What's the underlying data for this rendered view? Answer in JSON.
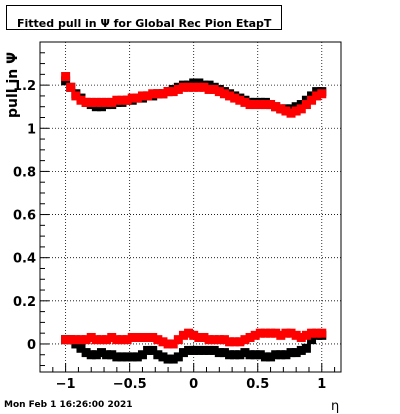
{
  "title": "Fitted pull in  Ψ  for Global Rec Pion EtapT",
  "footer": "Mon Feb  1 16:26:00 2021",
  "chart_data": {
    "type": "scatter",
    "title": "Fitted pull in  Ψ  for Global Rec Pion EtapT",
    "xlabel": "η",
    "ylabel": "pull in  Ψ",
    "xlim": [
      -1.2,
      1.15
    ],
    "ylim": [
      -0.13,
      1.4
    ],
    "grid": true,
    "x_ticks": [
      -1,
      -0.5,
      0,
      0.5,
      1
    ],
    "x_tick_labels": [
      "−1",
      "−0.5",
      "0",
      "0.5",
      "1"
    ],
    "y_ticks": [
      0,
      0.2,
      0.4,
      0.6,
      0.8,
      1,
      1.2
    ],
    "y_tick_labels": [
      "0",
      "0.2",
      "0.4",
      "0.6",
      "0.8",
      "1",
      "1.2"
    ],
    "x": [
      -1.0,
      -0.96,
      -0.92,
      -0.88,
      -0.84,
      -0.8,
      -0.76,
      -0.72,
      -0.68,
      -0.64,
      -0.6,
      -0.56,
      -0.52,
      -0.48,
      -0.44,
      -0.4,
      -0.36,
      -0.32,
      -0.28,
      -0.24,
      -0.2,
      -0.16,
      -0.12,
      -0.08,
      -0.04,
      0.0,
      0.04,
      0.08,
      0.12,
      0.16,
      0.2,
      0.24,
      0.28,
      0.32,
      0.36,
      0.4,
      0.44,
      0.48,
      0.52,
      0.56,
      0.6,
      0.64,
      0.68,
      0.72,
      0.76,
      0.8,
      0.84,
      0.88,
      0.92,
      0.96,
      1.0
    ],
    "series": [
      {
        "color": "#000000",
        "values": [
          1.22,
          1.19,
          1.16,
          1.14,
          1.12,
          1.11,
          1.1,
          1.1,
          1.11,
          1.11,
          1.12,
          1.12,
          1.13,
          1.13,
          1.14,
          1.14,
          1.15,
          1.15,
          1.16,
          1.16,
          1.17,
          1.18,
          1.19,
          1.2,
          1.2,
          1.21,
          1.21,
          1.2,
          1.2,
          1.19,
          1.18,
          1.17,
          1.16,
          1.15,
          1.14,
          1.13,
          1.12,
          1.12,
          1.12,
          1.12,
          1.11,
          1.1,
          1.09,
          1.09,
          1.09,
          1.1,
          1.11,
          1.13,
          1.15,
          1.17,
          1.17
        ]
      },
      {
        "color": "#ff0000",
        "values": [
          1.24,
          1.19,
          1.15,
          1.13,
          1.12,
          1.12,
          1.12,
          1.12,
          1.12,
          1.12,
          1.13,
          1.13,
          1.13,
          1.14,
          1.14,
          1.15,
          1.15,
          1.16,
          1.16,
          1.16,
          1.17,
          1.17,
          1.18,
          1.19,
          1.19,
          1.19,
          1.19,
          1.19,
          1.18,
          1.18,
          1.17,
          1.16,
          1.15,
          1.14,
          1.13,
          1.12,
          1.11,
          1.11,
          1.11,
          1.11,
          1.11,
          1.1,
          1.09,
          1.08,
          1.07,
          1.08,
          1.09,
          1.11,
          1.13,
          1.15,
          1.16
        ]
      },
      {
        "color": "#000000",
        "values": [
          0.02,
          0.02,
          0.0,
          -0.02,
          -0.04,
          -0.05,
          -0.05,
          -0.04,
          -0.05,
          -0.05,
          -0.06,
          -0.06,
          -0.06,
          -0.06,
          -0.06,
          -0.05,
          -0.03,
          -0.03,
          -0.05,
          -0.06,
          -0.07,
          -0.07,
          -0.06,
          -0.04,
          -0.03,
          -0.03,
          -0.03,
          -0.03,
          -0.03,
          -0.03,
          -0.04,
          -0.04,
          -0.05,
          -0.05,
          -0.05,
          -0.04,
          -0.05,
          -0.05,
          -0.05,
          -0.06,
          -0.06,
          -0.05,
          -0.05,
          -0.05,
          -0.04,
          -0.04,
          -0.03,
          -0.02,
          0.02,
          0.04,
          0.04
        ]
      },
      {
        "color": "#ff0000",
        "values": [
          0.02,
          0.02,
          0.02,
          0.02,
          0.02,
          0.03,
          0.02,
          0.02,
          0.02,
          0.03,
          0.02,
          0.02,
          0.02,
          0.03,
          0.03,
          0.03,
          0.03,
          0.03,
          0.02,
          0.01,
          0.0,
          0.0,
          0.02,
          0.04,
          0.05,
          0.04,
          0.03,
          0.03,
          0.02,
          0.02,
          0.02,
          0.02,
          0.01,
          0.01,
          0.01,
          0.02,
          0.03,
          0.04,
          0.05,
          0.05,
          0.05,
          0.05,
          0.04,
          0.05,
          0.05,
          0.04,
          0.03,
          0.04,
          0.05,
          0.05,
          0.05
        ]
      }
    ]
  }
}
